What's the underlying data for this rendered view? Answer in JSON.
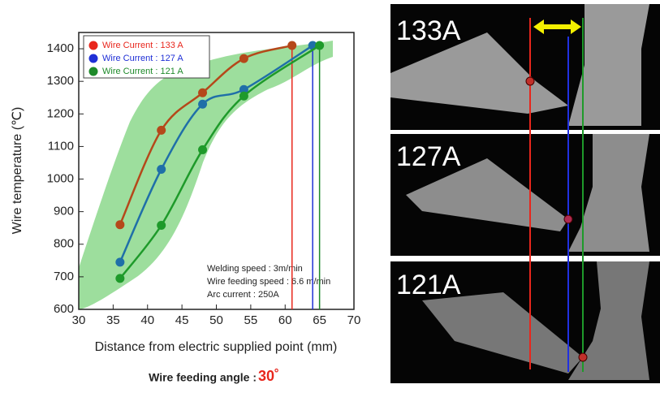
{
  "chart_data": {
    "type": "scatter",
    "xlabel": "Distance from electric supplied point (mm)",
    "ylabel": "Wire temperature (℃)",
    "xlim": [
      30,
      70
    ],
    "xticks": [
      30,
      35,
      40,
      45,
      50,
      55,
      60,
      65,
      70
    ],
    "ylim": [
      600,
      1450
    ],
    "yticks": [
      600,
      700,
      800,
      900,
      1000,
      1100,
      1200,
      1300,
      1400
    ],
    "series": [
      {
        "name": "Wire Current : 133 A",
        "color": "#e8261c",
        "line_color": "#b5481a",
        "x": [
          36,
          42,
          48,
          54,
          61
        ],
        "values": [
          860,
          1150,
          1265,
          1370,
          1410
        ],
        "vline": 61
      },
      {
        "name": "Wire Current : 127 A",
        "color": "#1f2fd6",
        "line_color": "#1f6fa8",
        "x": [
          36,
          42,
          48,
          54,
          64
        ],
        "values": [
          745,
          1030,
          1230,
          1275,
          1410
        ],
        "vline": 64
      },
      {
        "name": "Wire Current : 121 A",
        "color": "#1e8a2a",
        "line_color": "#1e9a2a",
        "x": [
          36,
          42,
          48,
          54,
          65
        ],
        "values": [
          695,
          858,
          1090,
          1255,
          1410
        ],
        "vline": 65
      }
    ],
    "annotations": [
      "Welding speed : 3m/min",
      "Wire feeding speed : 6.6 m/min",
      "Arc current : 250A"
    ],
    "footer": {
      "text": "Wire feeding angle : ",
      "angle": "30˚"
    },
    "panels": [
      "133A",
      "127A",
      "121A"
    ]
  }
}
